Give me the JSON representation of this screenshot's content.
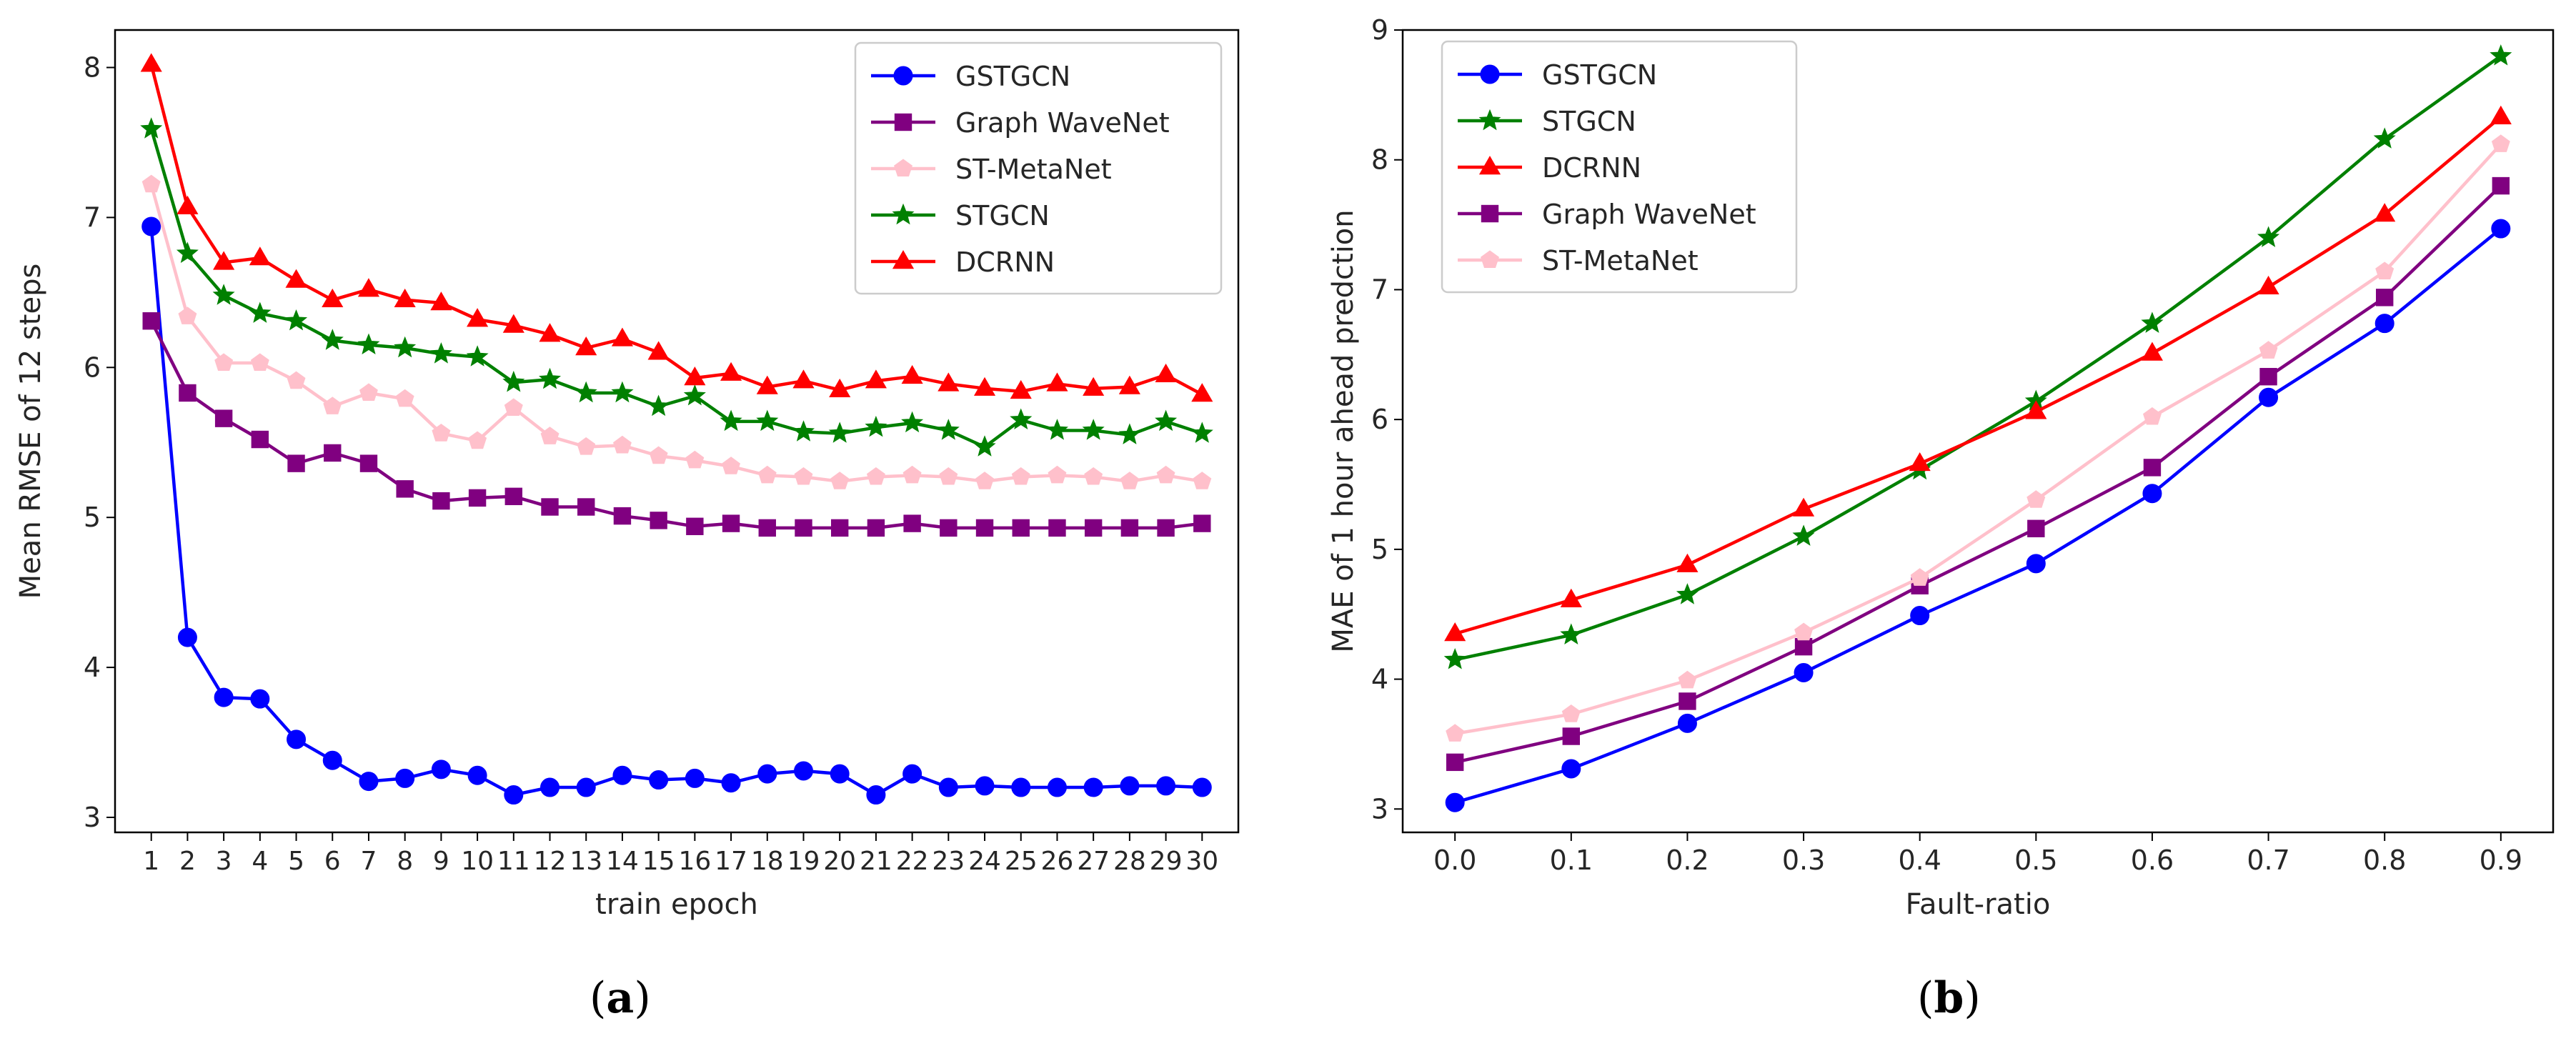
{
  "chart_data": [
    {
      "id": "a",
      "type": "line",
      "caption": "a",
      "xlabel": "train epoch",
      "ylabel": "Mean RMSE of 12 steps",
      "categories": [
        "1",
        "2",
        "3",
        "4",
        "5",
        "6",
        "7",
        "8",
        "9",
        "10",
        "11",
        "12",
        "13",
        "14",
        "15",
        "16",
        "17",
        "18",
        "19",
        "20",
        "21",
        "22",
        "23",
        "24",
        "25",
        "26",
        "27",
        "28",
        "29",
        "30"
      ],
      "xlim": [
        0,
        31
      ],
      "ylim": [
        2.9,
        8.25
      ],
      "yticks": [
        3,
        4,
        5,
        6,
        7,
        8
      ],
      "legend": "top-right",
      "series": [
        {
          "name": "GSTGCN",
          "color": "#0000ff",
          "marker": "circle",
          "values": [
            6.94,
            4.2,
            3.8,
            3.79,
            3.52,
            3.38,
            3.24,
            3.26,
            3.32,
            3.28,
            3.15,
            3.2,
            3.2,
            3.28,
            3.25,
            3.26,
            3.23,
            3.29,
            3.31,
            3.29,
            3.15,
            3.29,
            3.2,
            3.21,
            3.2,
            3.2,
            3.2,
            3.21,
            3.21,
            3.2
          ]
        },
        {
          "name": "Graph WaveNet",
          "color": "#800080",
          "marker": "square",
          "values": [
            6.31,
            5.83,
            5.66,
            5.52,
            5.36,
            5.43,
            5.36,
            5.19,
            5.11,
            5.13,
            5.14,
            5.07,
            5.07,
            5.01,
            4.98,
            4.94,
            4.96,
            4.93,
            4.93,
            4.93,
            4.93,
            4.96,
            4.93,
            4.93,
            4.93,
            4.93,
            4.93,
            4.93,
            4.93,
            4.96
          ]
        },
        {
          "name": "ST-MetaNet",
          "color": "#ffc0cb",
          "marker": "pentagon",
          "values": [
            7.22,
            6.34,
            6.03,
            6.03,
            5.91,
            5.74,
            5.83,
            5.79,
            5.56,
            5.51,
            5.73,
            5.54,
            5.47,
            5.48,
            5.41,
            5.38,
            5.34,
            5.28,
            5.27,
            5.24,
            5.27,
            5.28,
            5.27,
            5.24,
            5.27,
            5.28,
            5.27,
            5.24,
            5.28,
            5.24
          ]
        },
        {
          "name": "STGCN",
          "color": "#008000",
          "marker": "star",
          "values": [
            7.59,
            6.76,
            6.48,
            6.36,
            6.31,
            6.18,
            6.15,
            6.13,
            6.09,
            6.07,
            5.9,
            5.92,
            5.83,
            5.83,
            5.74,
            5.81,
            5.64,
            5.64,
            5.57,
            5.56,
            5.6,
            5.63,
            5.58,
            5.47,
            5.65,
            5.58,
            5.58,
            5.55,
            5.64,
            5.56
          ]
        },
        {
          "name": "DCRNN",
          "color": "#ff0000",
          "marker": "triangle",
          "values": [
            8.02,
            7.07,
            6.7,
            6.73,
            6.58,
            6.45,
            6.52,
            6.45,
            6.43,
            6.32,
            6.28,
            6.22,
            6.13,
            6.19,
            6.1,
            5.93,
            5.96,
            5.87,
            5.91,
            5.85,
            5.91,
            5.94,
            5.89,
            5.86,
            5.84,
            5.89,
            5.86,
            5.87,
            5.95,
            5.82
          ]
        }
      ]
    },
    {
      "id": "b",
      "type": "line",
      "caption": "b",
      "xlabel": "Fault-ratio",
      "ylabel": "MAE of 1 hour ahead predction",
      "x": [
        0.0,
        0.1,
        0.2,
        0.3,
        0.4,
        0.5,
        0.6,
        0.7,
        0.8,
        0.9
      ],
      "xticks": [
        "0.0",
        "0.1",
        "0.2",
        "0.3",
        "0.4",
        "0.5",
        "0.6",
        "0.7",
        "0.8",
        "0.9"
      ],
      "xlim": [
        -0.045,
        0.945
      ],
      "ylim": [
        2.82,
        9.0
      ],
      "yticks": [
        3,
        4,
        5,
        6,
        7,
        8,
        9
      ],
      "legend": "top-left",
      "series": [
        {
          "name": "GSTGCN",
          "color": "#0000ff",
          "marker": "circle",
          "values": [
            3.05,
            3.31,
            3.66,
            4.05,
            4.49,
            4.89,
            5.43,
            6.17,
            6.74,
            7.47
          ]
        },
        {
          "name": "STGCN",
          "color": "#008000",
          "marker": "star",
          "values": [
            4.15,
            4.34,
            4.65,
            5.1,
            5.61,
            6.14,
            6.74,
            7.4,
            8.16,
            8.8
          ]
        },
        {
          "name": "DCRNN",
          "color": "#ff0000",
          "marker": "triangle",
          "values": [
            4.35,
            4.61,
            4.88,
            5.31,
            5.66,
            6.06,
            6.51,
            7.02,
            7.58,
            8.33
          ]
        },
        {
          "name": "Graph WaveNet",
          "color": "#800080",
          "marker": "square",
          "values": [
            3.36,
            3.56,
            3.83,
            4.25,
            4.72,
            5.16,
            5.63,
            6.33,
            6.94,
            7.8
          ]
        },
        {
          "name": "ST-MetaNet",
          "color": "#ffc0cb",
          "marker": "pentagon",
          "values": [
            3.58,
            3.73,
            3.99,
            4.36,
            4.78,
            5.38,
            6.02,
            6.53,
            7.14,
            8.12
          ]
        }
      ]
    }
  ]
}
